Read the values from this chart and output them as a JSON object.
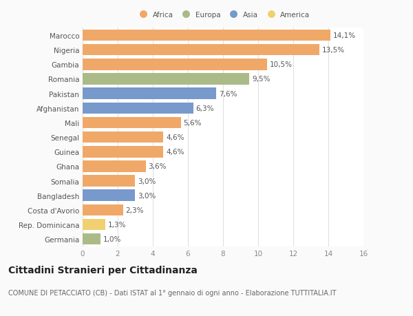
{
  "countries": [
    "Marocco",
    "Nigeria",
    "Gambia",
    "Romania",
    "Pakistan",
    "Afghanistan",
    "Mali",
    "Senegal",
    "Guinea",
    "Ghana",
    "Somalia",
    "Bangladesh",
    "Costa d'Avorio",
    "Rep. Dominicana",
    "Germania"
  ],
  "values": [
    14.1,
    13.5,
    10.5,
    9.5,
    7.6,
    6.3,
    5.6,
    4.6,
    4.6,
    3.6,
    3.0,
    3.0,
    2.3,
    1.3,
    1.0
  ],
  "labels": [
    "14,1%",
    "13,5%",
    "10,5%",
    "9,5%",
    "7,6%",
    "6,3%",
    "5,6%",
    "4,6%",
    "4,6%",
    "3,6%",
    "3,0%",
    "3,0%",
    "2,3%",
    "1,3%",
    "1,0%"
  ],
  "continents": [
    "Africa",
    "Africa",
    "Africa",
    "Europa",
    "Asia",
    "Asia",
    "Africa",
    "Africa",
    "Africa",
    "Africa",
    "Africa",
    "Asia",
    "Africa",
    "America",
    "Europa"
  ],
  "colors": {
    "Africa": "#F0A868",
    "Europa": "#AABB88",
    "Asia": "#7799CC",
    "America": "#F0D070"
  },
  "legend_order": [
    "Africa",
    "Europa",
    "Asia",
    "America"
  ],
  "xlim": [
    0,
    16
  ],
  "xticks": [
    0,
    2,
    4,
    6,
    8,
    10,
    12,
    14,
    16
  ],
  "title": "Cittadini Stranieri per Cittadinanza",
  "subtitle": "COMUNE DI PETACCIATO (CB) - Dati ISTAT al 1° gennaio di ogni anno - Elaborazione TUTTITALIA.IT",
  "bg_color": "#FAFAFA",
  "bar_bg_color": "#FFFFFF",
  "grid_color": "#DDDDDD",
  "bar_label_color": "#555555",
  "ytick_color": "#555555",
  "xtick_color": "#888888",
  "label_fontsize": 7.5,
  "tick_fontsize": 7.5,
  "title_fontsize": 10,
  "subtitle_fontsize": 7,
  "bar_height": 0.78
}
